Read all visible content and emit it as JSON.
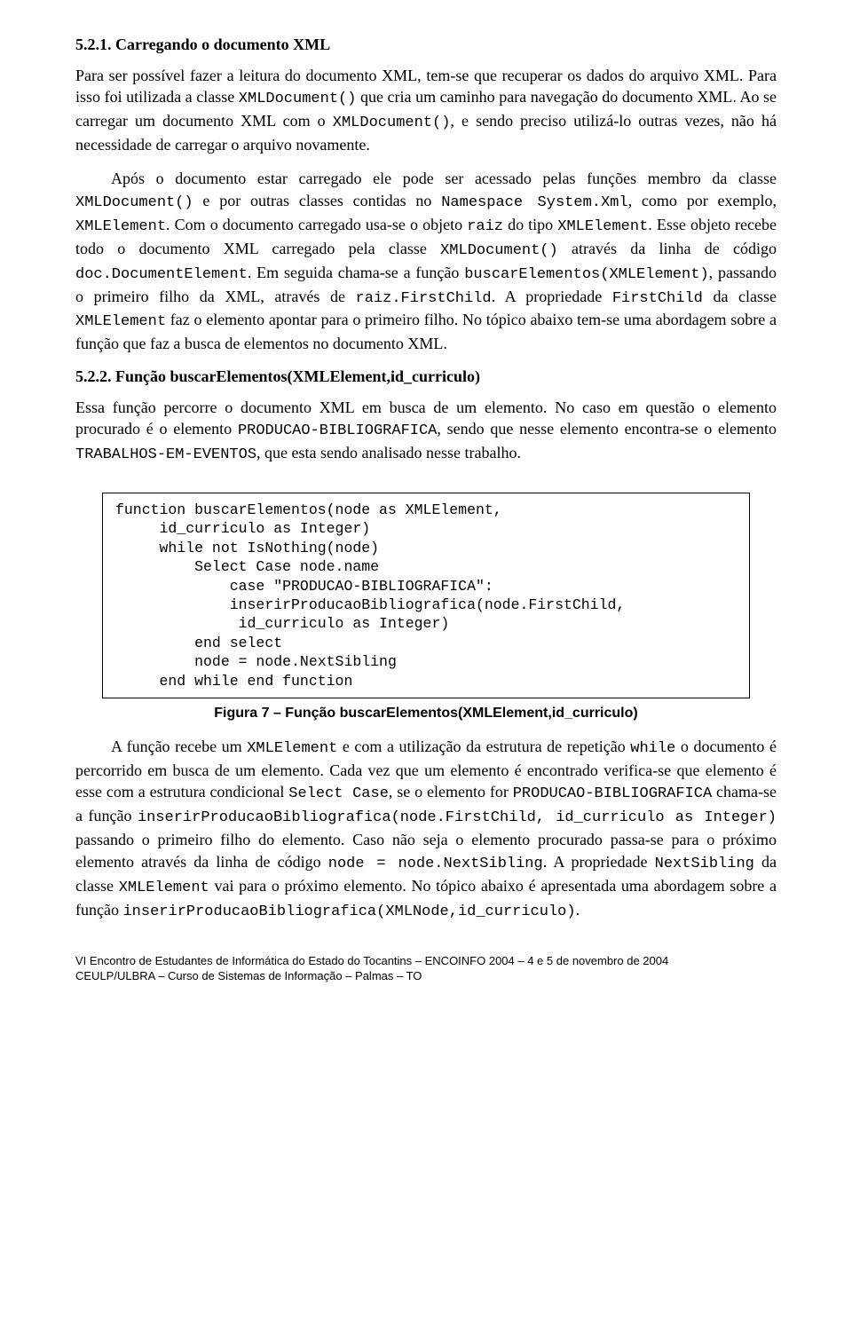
{
  "section1": {
    "title": "5.2.1. Carregando o documento XML",
    "p1_part1": "Para ser possível fazer a leitura do documento XML, tem-se que recuperar os dados do arquivo XML. Para isso foi utilizada a classe ",
    "p1_code1": "XMLDocument()",
    "p1_part2": " que cria um caminho para navegação do documento XML. Ao se carregar um documento XML com o ",
    "p1_code2": "XMLDocument()",
    "p1_part3": ", e sendo preciso utilizá-lo outras vezes, não há necessidade de carregar o arquivo novamente.",
    "p2_part1": "Após o documento estar carregado ele pode ser acessado pelas funções membro da classe ",
    "p2_code1": "XMLDocument()",
    "p2_part2": " e por outras classes contidas no ",
    "p2_code2": "Namespace System.Xml",
    "p2_part3": ", como por exemplo, ",
    "p2_code3": "XMLElement",
    "p2_part4": ". Com o documento carregado usa-se o objeto ",
    "p2_code4": "raiz",
    "p2_part5": " do tipo ",
    "p2_code5": "XMLElement",
    "p2_part6": ". Esse objeto recebe todo o documento XML carregado pela classe ",
    "p2_code6": "XMLDocument()",
    "p2_part7": " através da linha de código ",
    "p2_code7": "doc.DocumentElement",
    "p2_part8": ". Em seguida chama-se a função ",
    "p2_code8": "buscarElementos(XMLElement)",
    "p2_part9": ", passando o primeiro filho da XML, através de ",
    "p2_code9": "raiz.FirstChild",
    "p2_part10": ". A propriedade ",
    "p2_code10": "FirstChild",
    "p2_part11": " da classe ",
    "p2_code11": "XMLElement",
    "p2_part12": " faz o elemento apontar para o primeiro filho. No tópico abaixo tem-se uma abordagem sobre a função que faz a busca de elementos no documento XML."
  },
  "section2": {
    "title": "5.2.2. Função buscarElementos(XMLElement,id_curriculo)",
    "p1_part1": "Essa função percorre o documento XML em busca de um elemento. No caso em questão o elemento procurado é o elemento ",
    "p1_code1": "PRODUCAO-BIBLIOGRAFICA",
    "p1_part2": ", sendo que nesse elemento encontra-se o elemento ",
    "p1_code2": "TRABALHOS-EM-EVENTOS",
    "p1_part3": ", que esta sendo analisado nesse trabalho.",
    "code_block": "function buscarElementos(node as XMLElement,\n     id_curriculo as Integer)\n     while not IsNothing(node)\n         Select Case node.name\n             case \"PRODUCAO-BIBLIOGRAFICA\":\n             inserirProducaoBibliografica(node.FirstChild,\n              id_curriculo as Integer)\n         end select\n         node = node.NextSibling\n     end while end function",
    "figure_caption": "Figura 7 – Função buscarElementos(XMLElement,id_curriculo)",
    "p2_part1": "A função recebe um ",
    "p2_code1": "XMLElement",
    "p2_part2": " e com a utilização da estrutura de repetição ",
    "p2_code2": "while",
    "p2_part3": " o documento é percorrido em busca de um elemento. Cada vez que um elemento é encontrado verifica-se que elemento é esse com a estrutura condicional ",
    "p2_code3": "Select Case",
    "p2_part4": ", se o elemento for ",
    "p2_code4": "PRODUCAO-BIBLIOGRAFICA",
    "p2_part5": " chama-se a função ",
    "p2_code5": "inserirProducaoBibliografica(node.FirstChild, id_curriculo as Integer)",
    "p2_part6": " passando o primeiro filho do elemento. Caso não seja o elemento procurado passa-se para o próximo elemento através da linha de código ",
    "p2_code6": "node = node.NextSibling",
    "p2_part7": ". A propriedade ",
    "p2_code7": "NextSibling",
    "p2_part8": " da classe ",
    "p2_code8": "XMLElement",
    "p2_part9": " vai para o próximo elemento. No tópico abaixo é apresentada uma abordagem sobre a função ",
    "p2_code9": "inserirProducaoBibliografica(XMLNode,id_curriculo)",
    "p2_part10": "."
  },
  "footer": {
    "line1": "VI Encontro de Estudantes de Informática do Estado do Tocantins – ENCOINFO 2004 – 4 e 5 de novembro de 2004",
    "line2": "CEULP/ULBRA – Curso de Sistemas de Informação – Palmas – TO"
  }
}
